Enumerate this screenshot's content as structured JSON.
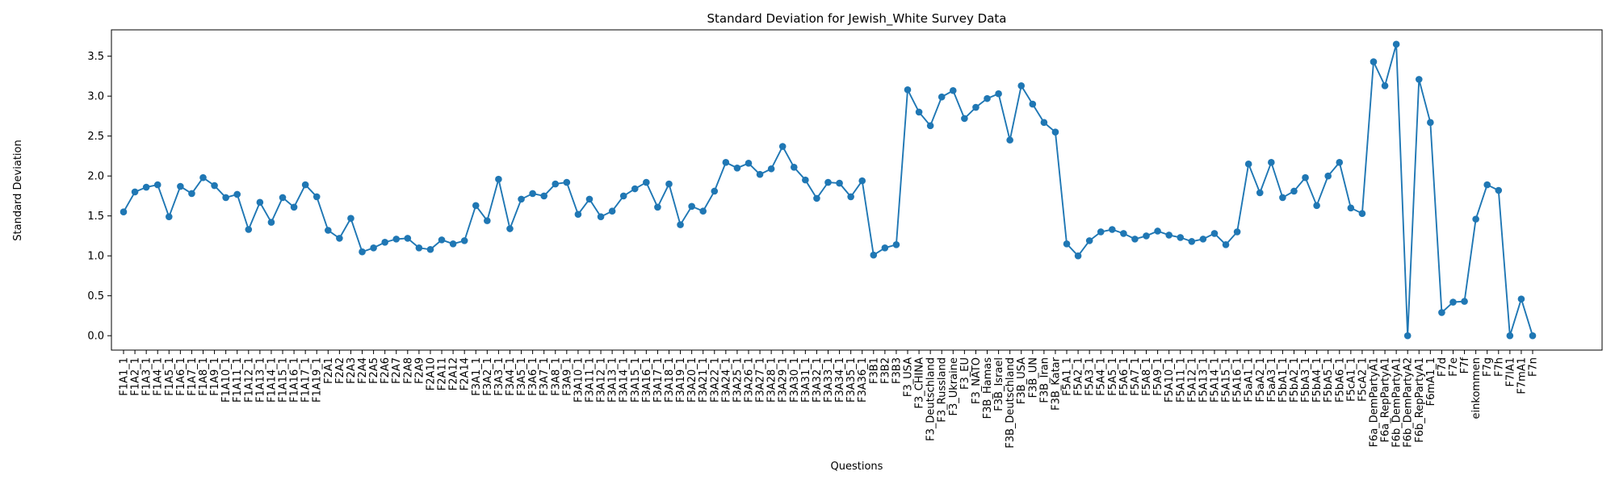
{
  "chart_data": {
    "type": "line",
    "title": "Standard Deviation for Jewish_White Survey Data",
    "x_label": "Questions",
    "y_label": "Standard Deviation",
    "categories": [
      "F1A1_1",
      "F1A2_1",
      "F1A3_1",
      "F1A4_1",
      "F1A5_1",
      "F1A6_1",
      "F1A7_1",
      "F1A8_1",
      "F1A9_1",
      "F1A10_1",
      "F1A11_1",
      "F1A12_1",
      "F1A13_1",
      "F1A14_1",
      "F1A15_1",
      "F1A16_1",
      "F1A17_1",
      "F1A19_1",
      "F2A1",
      "F2A2",
      "F2A3",
      "F2A4",
      "F2A5",
      "F2A6",
      "F2A7",
      "F2A8",
      "F2A9",
      "F2A10",
      "F2A11",
      "F2A12",
      "F2A14",
      "F3A1_1",
      "F3A2_1",
      "F3A3_1",
      "F3A4_1",
      "F3A5_1",
      "F3A6_1",
      "F3A7_1",
      "F3A8_1",
      "F3A9_1",
      "F3A10_1",
      "F3A11_1",
      "F3A12_1",
      "F3A13_1",
      "F3A14_1",
      "F3A15_1",
      "F3A16_1",
      "F3A17_1",
      "F3A18_1",
      "F3A19_1",
      "F3A20_1",
      "F3A21_1",
      "F3A22_1",
      "F3A24_1",
      "F3A25_1",
      "F3A26_1",
      "F3A27_1",
      "F3A28_1",
      "F3A29_1",
      "F3A30_1",
      "F3A31_1",
      "F3A32_1",
      "F3A33_1",
      "F3A34_1",
      "F3A35_1",
      "F3A36_1",
      "F3B1",
      "F3B2",
      "F3B3",
      "F3_USA",
      "F3_CHINA",
      "F3_Deutschland",
      "F3_Russland",
      "F3_Ukraine",
      "F3_EU",
      "F3_NATO",
      "F3B_Hamas",
      "F3B_Israel",
      "F3B_Deutschland",
      "F3B_USA",
      "F3B_UN",
      "F3B_Iran",
      "F3B_Katar",
      "F5A1_1",
      "F5A2_1",
      "F5A3_1",
      "F5A4_1",
      "F5A5_1",
      "F5A6_1",
      "F5A7_1",
      "F5A8_1",
      "F5A9_1",
      "F5A10_1",
      "F5A11_1",
      "F5A12_1",
      "F5A13_1",
      "F5A14_1",
      "F5A15_1",
      "F5A16_1",
      "F5aA1_1",
      "F5aA2_1",
      "F5aA3_1",
      "F5bA1_1",
      "F5bA2_1",
      "F5bA3_1",
      "F5bA4_1",
      "F5bA5_1",
      "F5bA6_1",
      "F5cA1_1",
      "F5cA2_1",
      "F6a_DemPartyA1",
      "F6a_RepPartyA1",
      "F6b_DemPartyA1",
      "F6b_DemPartyA2",
      "F6b_RepPartyA1",
      "F6mA1_1",
      "F7d",
      "F7e",
      "F7f",
      "einkommen",
      "F7g",
      "F7h",
      "F7lA1",
      "F7mA1",
      "F7n"
    ],
    "values": [
      1.55,
      1.8,
      1.86,
      1.89,
      1.49,
      1.87,
      1.78,
      1.98,
      1.88,
      1.73,
      1.77,
      1.33,
      1.67,
      1.42,
      1.73,
      1.61,
      1.89,
      1.74,
      1.32,
      1.22,
      1.47,
      1.05,
      1.1,
      1.17,
      1.21,
      1.22,
      1.1,
      1.08,
      1.2,
      1.15,
      1.19,
      1.63,
      1.44,
      1.96,
      1.34,
      1.71,
      1.78,
      1.75,
      1.9,
      1.92,
      1.52,
      1.71,
      1.49,
      1.56,
      1.75,
      1.84,
      1.92,
      1.61,
      1.9,
      1.39,
      1.62,
      1.56,
      1.81,
      2.17,
      2.1,
      2.16,
      2.02,
      2.09,
      2.37,
      2.11,
      1.95,
      1.72,
      1.92,
      1.91,
      1.74,
      1.94,
      1.01,
      1.1,
      1.14,
      3.08,
      2.8,
      2.63,
      2.99,
      3.07,
      2.72,
      2.86,
      2.97,
      3.03,
      2.45,
      3.13,
      2.9,
      2.67,
      2.55,
      1.15,
      1.0,
      1.19,
      1.3,
      1.33,
      1.28,
      1.21,
      1.25,
      1.31,
      1.26,
      1.23,
      1.18,
      1.21,
      1.28,
      1.14,
      1.3,
      2.15,
      1.79,
      2.17,
      1.73,
      1.81,
      1.98,
      1.63,
      2.0,
      2.17,
      1.6,
      1.53,
      3.43,
      3.13,
      3.65,
      0.0,
      3.21,
      2.67,
      0.29,
      0.42,
      0.43,
      1.46,
      1.89,
      1.82,
      0.0,
      0.46,
      0.0
    ],
    "color": "#1f77b4",
    "ylim": [
      -0.18,
      3.83
    ],
    "yticks": [
      {
        "value": 0,
        "label": "0.0"
      },
      0.5,
      {
        "value": 1,
        "label": "1.0"
      },
      1.5,
      {
        "value": 2,
        "label": "2.0"
      },
      2.5,
      {
        "value": 3,
        "label": "3.0"
      },
      3.5
    ],
    "grid": false
  }
}
